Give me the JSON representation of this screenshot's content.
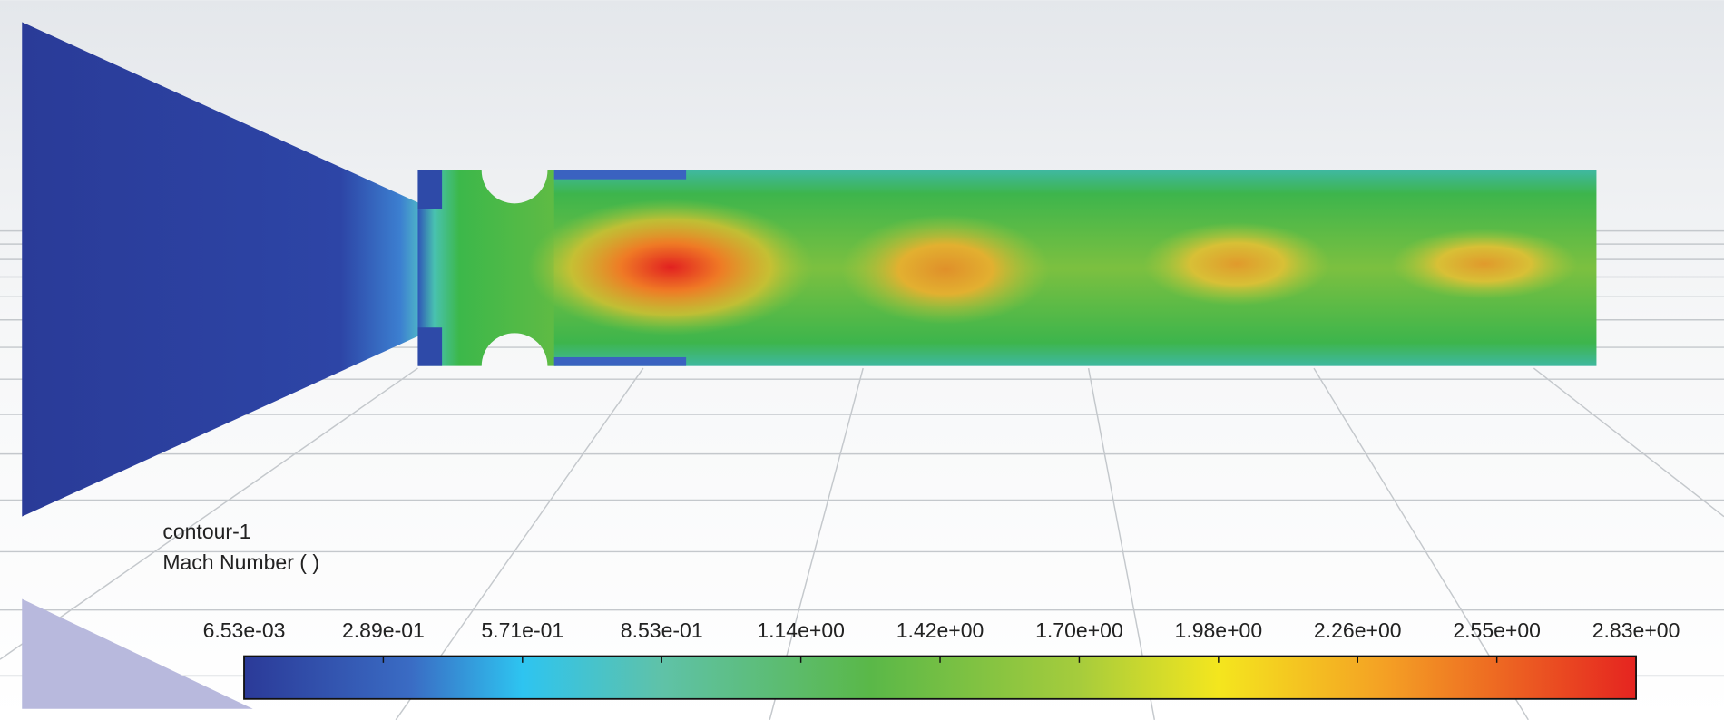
{
  "legend": {
    "title": "contour-1",
    "variable": "Mach Number ( )",
    "levels": [
      "6.53e-03",
      "2.89e-01",
      "5.71e-01",
      "8.53e-01",
      "1.14e+00",
      "1.42e+00",
      "1.70e+00",
      "1.98e+00",
      "2.26e+00",
      "2.55e+00",
      "2.83e+00"
    ]
  }
}
